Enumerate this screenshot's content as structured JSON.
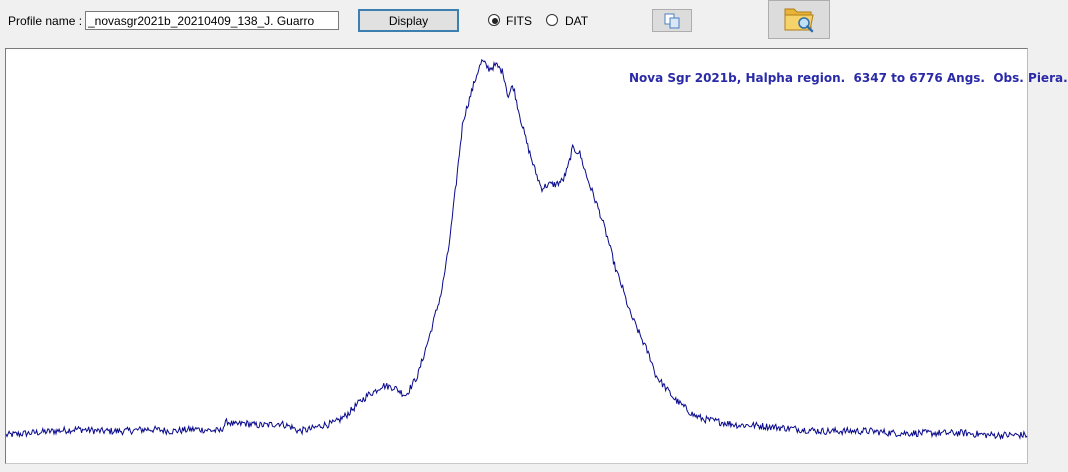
{
  "toolbar": {
    "profile_label": "Profile name :",
    "profile_value": "_novasgr2021b_20210409_138_J. Guarro",
    "display_label": "Display",
    "format_options": [
      {
        "label": "FITS",
        "selected": true
      },
      {
        "label": "DAT",
        "selected": false
      }
    ],
    "copy_icon": "copy-icon",
    "open_icon": "folder-search-icon"
  },
  "colors": {
    "line": "#0a0a8c",
    "title": "#2a2aa8",
    "panel": "#f0f0f0"
  },
  "chart_data": {
    "type": "line",
    "title": "Nova Sgr 2021b, Halpha region.  6347 to 6776 Angs.  Obs. Piera.",
    "xlabel": "",
    "ylabel": "",
    "xlim": [
      6347,
      6776
    ],
    "ylim": [
      0,
      1
    ],
    "grid": false,
    "series": [
      {
        "x": [
          6347,
          6357,
          6367,
          6377,
          6387,
          6397,
          6407,
          6417,
          6427,
          6437,
          6440,
          6443,
          6447,
          6452,
          6457,
          6462,
          6467,
          6470,
          6475,
          6480,
          6485,
          6490,
          6496,
          6500,
          6502,
          6505,
          6510,
          6515,
          6520,
          6525,
          6530,
          6533,
          6535,
          6537,
          6539,
          6541,
          6543,
          6545,
          6547,
          6550,
          6553,
          6556,
          6558,
          6560,
          6563,
          6566,
          6569,
          6572,
          6575,
          6578,
          6581,
          6583,
          6585,
          6588,
          6591,
          6594,
          6597,
          6600,
          6603,
          6606,
          6609,
          6612,
          6615,
          6618,
          6620,
          6624,
          6628,
          6632,
          6636,
          6640,
          6645,
          6650,
          6655,
          6660,
          6670,
          6680,
          6690,
          6700,
          6710,
          6720,
          6730,
          6740,
          6750,
          6760,
          6770,
          6776
        ],
        "y": [
          0.05,
          0.055,
          0.06,
          0.065,
          0.06,
          0.06,
          0.065,
          0.06,
          0.065,
          0.06,
          0.085,
          0.075,
          0.08,
          0.075,
          0.075,
          0.08,
          0.07,
          0.06,
          0.065,
          0.075,
          0.08,
          0.1,
          0.135,
          0.155,
          0.16,
          0.175,
          0.17,
          0.15,
          0.2,
          0.3,
          0.41,
          0.52,
          0.62,
          0.73,
          0.84,
          0.88,
          0.92,
          0.96,
          0.99,
          0.97,
          0.98,
          0.96,
          0.9,
          0.93,
          0.85,
          0.78,
          0.72,
          0.67,
          0.68,
          0.68,
          0.69,
          0.72,
          0.77,
          0.76,
          0.7,
          0.65,
          0.6,
          0.54,
          0.47,
          0.42,
          0.36,
          0.32,
          0.28,
          0.24,
          0.2,
          0.17,
          0.14,
          0.12,
          0.1,
          0.09,
          0.085,
          0.08,
          0.075,
          0.075,
          0.07,
          0.065,
          0.06,
          0.06,
          0.06,
          0.055,
          0.055,
          0.055,
          0.055,
          0.05,
          0.05,
          0.05
        ]
      }
    ]
  }
}
